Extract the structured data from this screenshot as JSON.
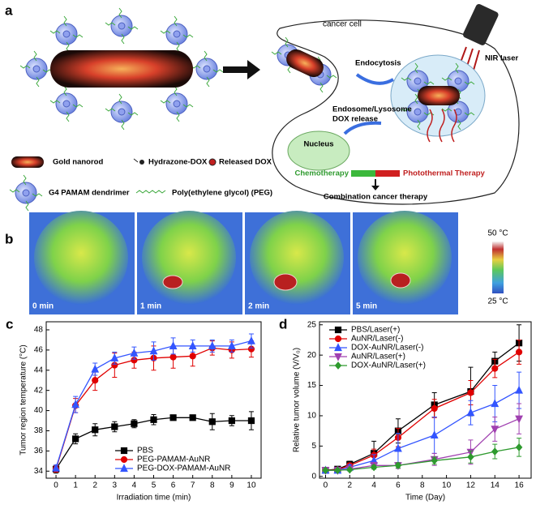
{
  "panel_a": {
    "label": "a",
    "cell_label": "cancer cell",
    "endocytosis": "Endocytosis",
    "laser": "NIR laser",
    "release": [
      "Endosome/Lysosome",
      "DOX release"
    ],
    "nucleus": "Nucleus",
    "chemo": "Chemotherapy",
    "photothermal": "Photothermal Therapy",
    "combination": "Combination cancer therapy",
    "legend": [
      "Gold nanorod",
      "Hydrazone-DOX",
      "Released DOX",
      "G4 PAMAM dendrimer",
      "Poly(ethylene glycol) (PEG)"
    ]
  },
  "panel_b": {
    "label": "b",
    "times": [
      "0 min",
      "1 min",
      "2 min",
      "5 min"
    ],
    "scale_max": "50 °C",
    "scale_min": "25 °C"
  },
  "chart_data": [
    {
      "type": "line",
      "panel_label": "c",
      "xlabel": "Irradiation time (min)",
      "ylabel": "Tumor region temperature (°C)",
      "x": [
        0,
        1,
        2,
        3,
        4,
        5,
        6,
        7,
        8,
        9,
        10
      ],
      "xlim": [
        -0.5,
        10.5
      ],
      "xticks": [
        0,
        1,
        2,
        3,
        4,
        5,
        6,
        7,
        8,
        9,
        10
      ],
      "ylim": [
        33.3,
        48.8
      ],
      "yticks": [
        34,
        36,
        38,
        40,
        42,
        44,
        46,
        48
      ],
      "legend": "lower right",
      "series": [
        {
          "name": "PBS",
          "color": "#000000",
          "marker": "square",
          "values": [
            34.2,
            37.2,
            38.1,
            38.4,
            38.7,
            39.1,
            39.3,
            39.3,
            38.9,
            39.0,
            39.0
          ],
          "errors": [
            0.4,
            0.5,
            0.6,
            0.5,
            0.4,
            0.5,
            0.2,
            0.2,
            0.8,
            0.5,
            0.9
          ]
        },
        {
          "name": "PEG-PAMAM-AuNR",
          "color": "#e00000",
          "marker": "circle",
          "values": [
            34.2,
            40.5,
            43.0,
            44.5,
            45.0,
            45.2,
            45.3,
            45.4,
            46.2,
            46.0,
            46.1
          ],
          "errors": [
            0.3,
            0.7,
            1.0,
            1.2,
            0.8,
            1.2,
            1.1,
            1.0,
            0.7,
            0.8,
            0.8
          ]
        },
        {
          "name": "PEG-DOX-PAMAM-AuNR",
          "color": "#3355ff",
          "marker": "triangle",
          "values": [
            34.3,
            40.6,
            44.1,
            45.2,
            45.7,
            45.9,
            46.4,
            46.4,
            46.4,
            46.4,
            46.9
          ],
          "errors": [
            0.3,
            0.8,
            0.6,
            0.6,
            0.6,
            0.9,
            0.8,
            0.6,
            0.6,
            0.6,
            0.7
          ]
        }
      ]
    },
    {
      "type": "line",
      "panel_label": "d",
      "xlabel": "Time (Day)",
      "ylabel": "Relative tumor volume (V/V₀)",
      "x": [
        0,
        1,
        2,
        4,
        6,
        9,
        12,
        14,
        16
      ],
      "xlim": [
        -0.5,
        17
      ],
      "xticks": [
        0,
        2,
        4,
        6,
        8,
        10,
        12,
        14,
        16
      ],
      "ylim": [
        -0.3,
        25.5
      ],
      "yticks": [
        0,
        5,
        10,
        15,
        20,
        25
      ],
      "legend": "upper left",
      "series": [
        {
          "name": "PBS/Laser(+)",
          "color": "#000000",
          "marker": "square",
          "values": [
            1,
            1.2,
            2,
            3.8,
            7.5,
            11.8,
            14,
            19,
            22
          ],
          "errors": [
            0.3,
            0.3,
            0.5,
            2,
            2,
            2,
            4,
            1.5,
            3
          ]
        },
        {
          "name": "AuNR/Laser(-)",
          "color": "#e00000",
          "marker": "circle",
          "values": [
            1,
            1.1,
            1.8,
            3.5,
            6.4,
            11.2,
            13.8,
            17.8,
            20.5
          ],
          "errors": [
            0.2,
            0.3,
            0.4,
            1,
            1.5,
            1.5,
            2,
            1.5,
            2
          ]
        },
        {
          "name": "DOX-AuNR/Laser(-)",
          "color": "#3355ff",
          "marker": "triangle",
          "values": [
            1,
            1,
            1.5,
            2.6,
            4.6,
            6.8,
            10.5,
            12,
            14.2
          ],
          "errors": [
            0.2,
            0.3,
            0.4,
            1,
            2.5,
            3,
            2,
            3,
            3
          ]
        },
        {
          "name": "AuNR/Laser(+)",
          "color": "#a040b0",
          "marker": "down",
          "values": [
            1,
            1,
            1.2,
            1.8,
            1.8,
            2.8,
            4,
            7.8,
            9.5
          ],
          "errors": [
            0.2,
            0.2,
            0.3,
            0.5,
            0.5,
            1,
            2,
            2,
            2.5
          ]
        },
        {
          "name": "DOX-AuNR/Laser(+)",
          "color": "#2e9a2e",
          "marker": "diamond",
          "values": [
            1,
            1,
            1.1,
            1.5,
            1.8,
            2.6,
            3.2,
            4.1,
            4.8
          ],
          "errors": [
            0.2,
            0.2,
            0.2,
            0.3,
            0.4,
            0.6,
            1,
            1.2,
            1.5
          ]
        }
      ]
    }
  ]
}
